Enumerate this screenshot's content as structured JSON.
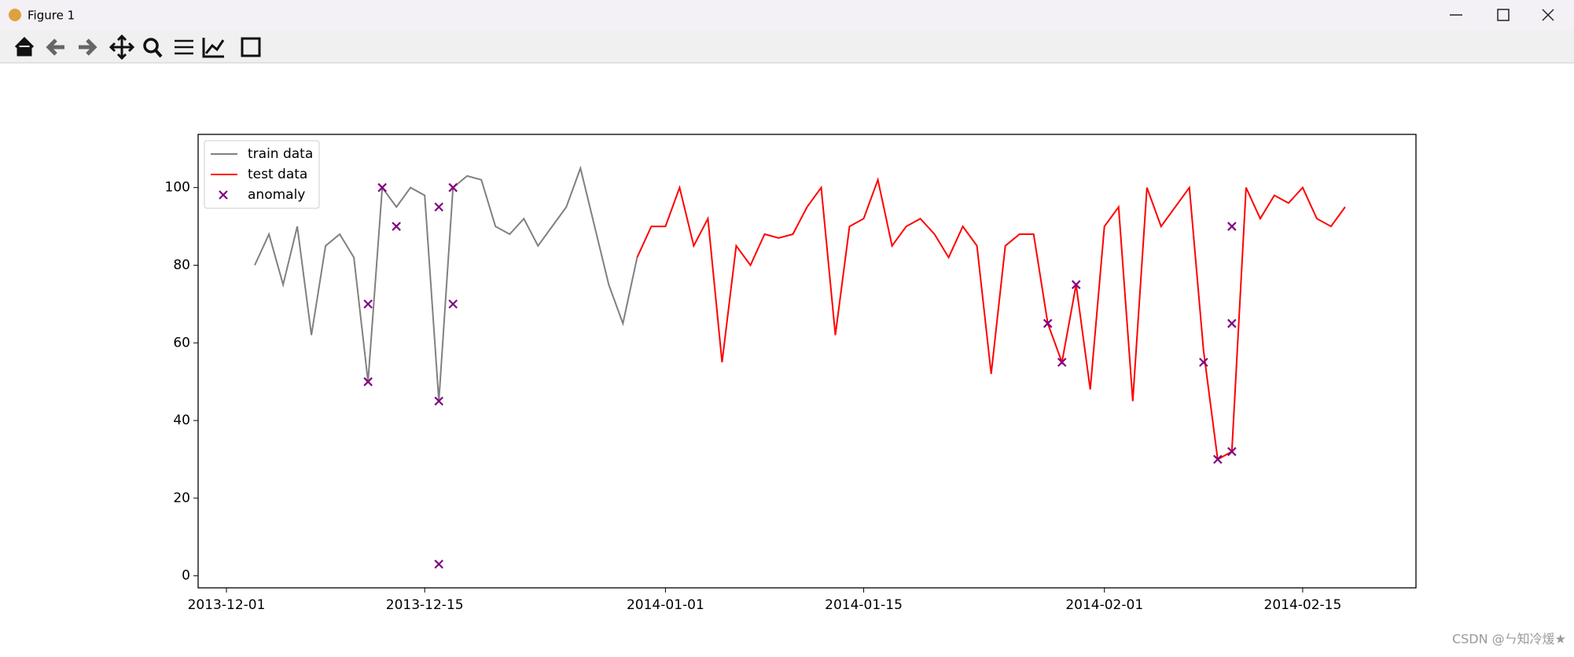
{
  "window": {
    "title": "Figure 1",
    "watermark": "CSDN @ㄣ知冷煖★"
  },
  "chart_data": {
    "type": "line",
    "xlim": [
      "2013-11-29",
      "2014-02-23"
    ],
    "xticks": [
      "2013-12-01",
      "2013-12-15",
      "2014-01-01",
      "2014-01-15",
      "2014-02-01",
      "2014-02-15"
    ],
    "ylim": [
      -3.1,
      113.7
    ],
    "yticks": [
      0,
      20,
      40,
      60,
      80,
      100
    ],
    "legend": "upper left",
    "series": [
      {
        "name": "train data",
        "color": "#808080",
        "mode": "line",
        "x": [
          "2013-12-03",
          "2013-12-04",
          "2013-12-05",
          "2013-12-06",
          "2013-12-07",
          "2013-12-08",
          "2013-12-09",
          "2013-12-10",
          "2013-12-11",
          "2013-12-12",
          "2013-12-13",
          "2013-12-14",
          "2013-12-15",
          "2013-12-16",
          "2013-12-17",
          "2013-12-18",
          "2013-12-19",
          "2013-12-20",
          "2013-12-21",
          "2013-12-22",
          "2013-12-23",
          "2013-12-24",
          "2013-12-25",
          "2013-12-26",
          "2013-12-27",
          "2013-12-28",
          "2013-12-29",
          "2013-12-30"
        ],
        "values": [
          80,
          88,
          75,
          90,
          62,
          85,
          88,
          82,
          50,
          100,
          95,
          100,
          98,
          45,
          100,
          103,
          102,
          90,
          88,
          92,
          85,
          90,
          95,
          105,
          90,
          75,
          65,
          82
        ]
      },
      {
        "name": "test data",
        "color": "#ff0000",
        "mode": "line",
        "x": [
          "2013-12-30",
          "2013-12-31",
          "2014-01-01",
          "2014-01-02",
          "2014-01-03",
          "2014-01-04",
          "2014-01-05",
          "2014-01-06",
          "2014-01-07",
          "2014-01-08",
          "2014-01-09",
          "2014-01-10",
          "2014-01-11",
          "2014-01-12",
          "2014-01-13",
          "2014-01-14",
          "2014-01-15",
          "2014-01-16",
          "2014-01-17",
          "2014-01-18",
          "2014-01-19",
          "2014-01-20",
          "2014-01-21",
          "2014-01-22",
          "2014-01-23",
          "2014-01-24",
          "2014-01-25",
          "2014-01-26",
          "2014-01-27",
          "2014-01-28",
          "2014-01-29",
          "2014-01-30",
          "2014-01-31",
          "2014-02-01",
          "2014-02-02",
          "2014-02-03",
          "2014-02-04",
          "2014-02-05",
          "2014-02-06",
          "2014-02-07",
          "2014-02-08",
          "2014-02-09",
          "2014-02-10",
          "2014-02-11",
          "2014-02-12",
          "2014-02-13",
          "2014-02-14",
          "2014-02-15",
          "2014-02-16",
          "2014-02-17",
          "2014-02-18"
        ],
        "values": [
          82,
          90,
          90,
          100,
          85,
          92,
          55,
          85,
          80,
          88,
          87,
          88,
          95,
          100,
          62,
          90,
          92,
          102,
          85,
          90,
          92,
          88,
          82,
          90,
          85,
          52,
          85,
          88,
          88,
          65,
          55,
          75,
          48,
          90,
          95,
          45,
          100,
          90,
          95,
          100,
          58,
          30,
          32,
          100,
          92,
          98,
          96,
          100,
          92,
          90,
          95
        ]
      },
      {
        "name": "anomaly",
        "color": "#800080",
        "mode": "scatter",
        "x": [
          "2013-12-11",
          "2013-12-11",
          "2013-12-12",
          "2013-12-13",
          "2013-12-16",
          "2013-12-16",
          "2013-12-16",
          "2013-12-17",
          "2013-12-17",
          "2014-01-28",
          "2014-01-29",
          "2014-01-30",
          "2014-02-08",
          "2014-02-09",
          "2014-02-10",
          "2014-02-10",
          "2014-02-10"
        ],
        "values": [
          50,
          70,
          100,
          90,
          95,
          45,
          3,
          100,
          70,
          65,
          55,
          75,
          55,
          30,
          32,
          90,
          65
        ]
      }
    ]
  }
}
